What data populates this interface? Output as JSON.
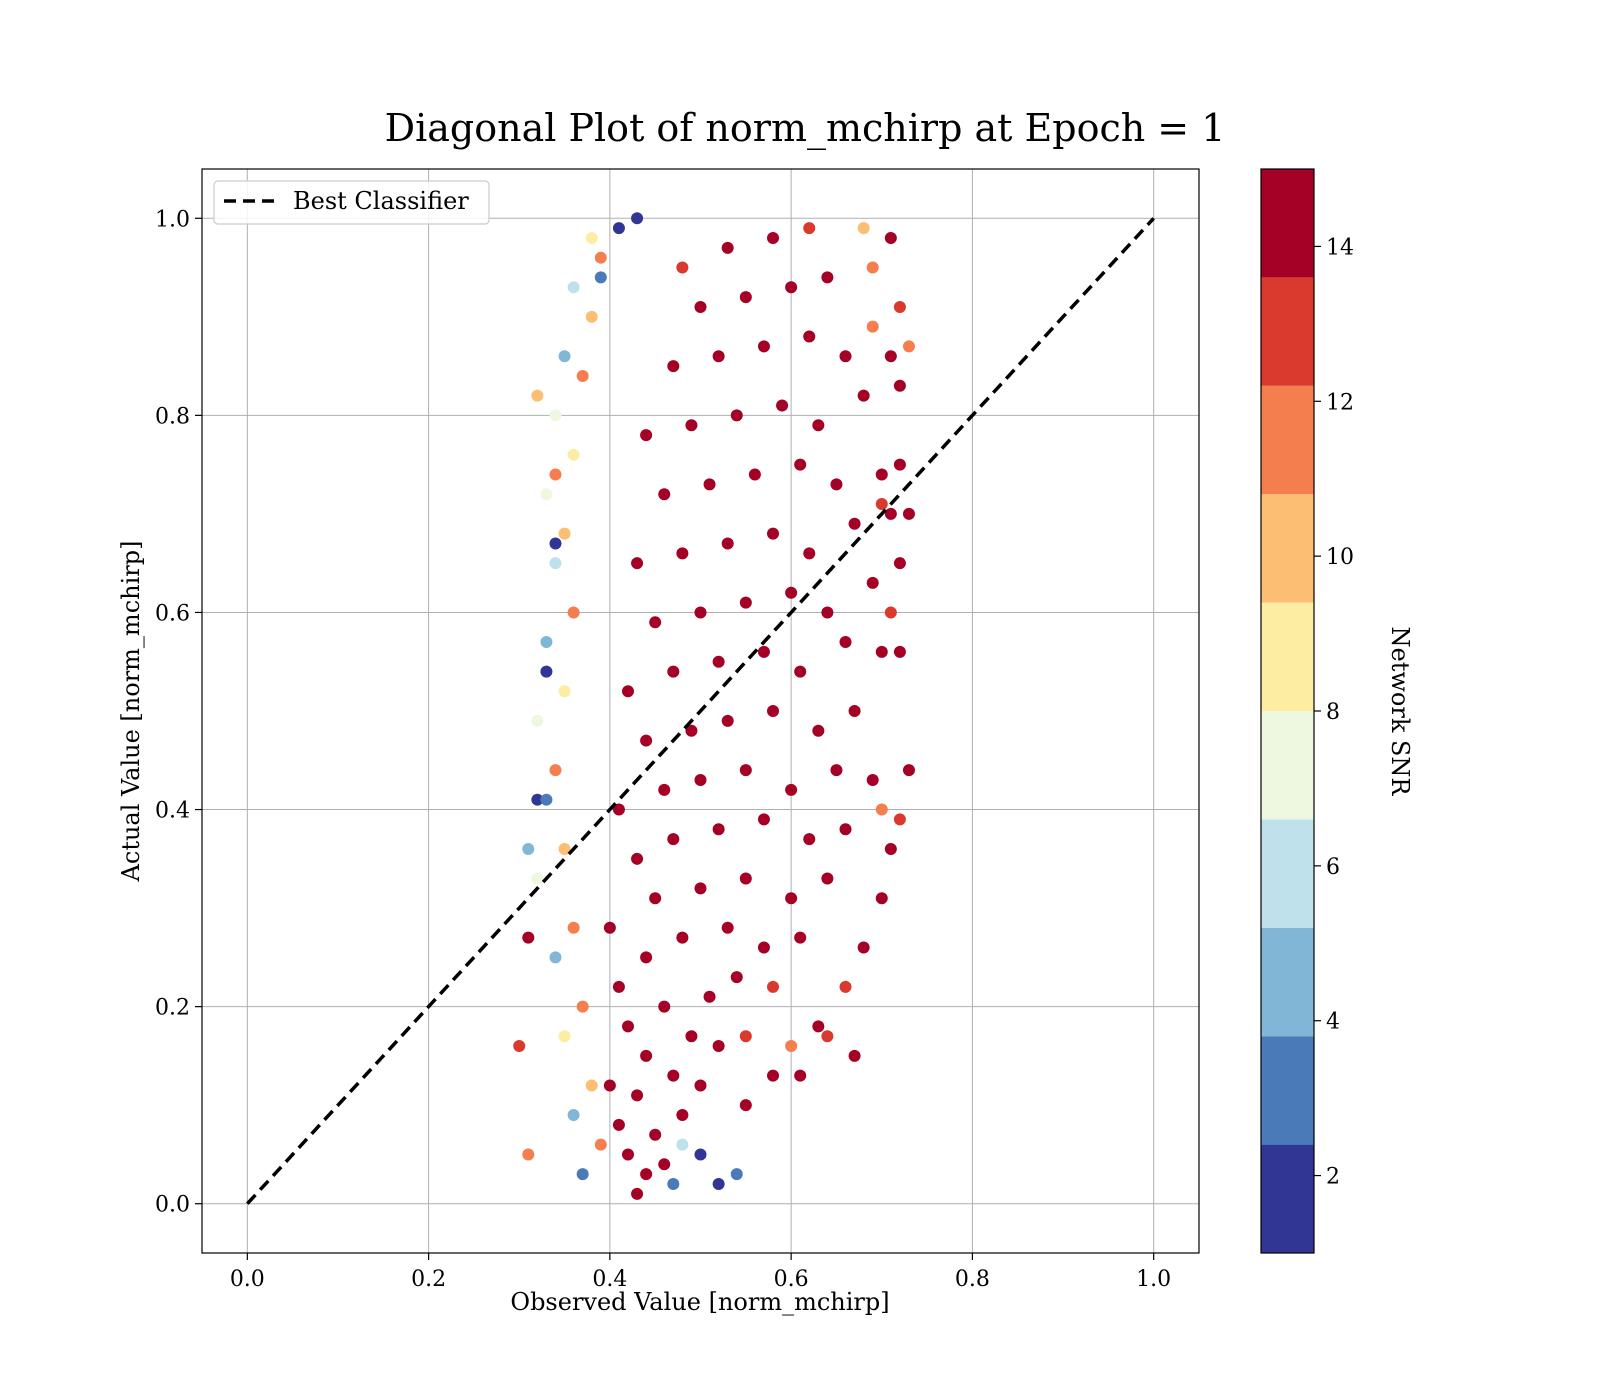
{
  "chart_data": {
    "type": "scatter",
    "title": "Diagonal Plot of norm_mchirp at Epoch = 1",
    "xlabel": "Observed Value [norm_mchirp]",
    "ylabel": "Actual Value [norm_mchirp]",
    "xlim": [
      -0.05,
      1.05
    ],
    "ylim": [
      -0.05,
      1.05
    ],
    "xticks": [
      "0.0",
      "0.2",
      "0.4",
      "0.6",
      "0.8",
      "1.0"
    ],
    "yticks": [
      "0.0",
      "0.2",
      "0.4",
      "0.6",
      "0.8",
      "1.0"
    ],
    "grid": true,
    "legend": {
      "placement": "top-left",
      "entries": [
        "Best Classifier"
      ]
    },
    "reference_line": {
      "name": "Best Classifier",
      "x": [
        0.0,
        1.0
      ],
      "y": [
        0.0,
        1.0
      ],
      "style": "dashed",
      "color": "#000000"
    },
    "colorbar": {
      "label": "Network SNR",
      "range": [
        1,
        15
      ],
      "ticks": [
        "2",
        "4",
        "6",
        "8",
        "10",
        "12",
        "14"
      ],
      "tick_values": [
        2,
        4,
        6,
        8,
        10,
        12,
        14
      ],
      "levels": [
        1,
        2.4,
        3.8,
        5.2,
        6.6,
        8.0,
        9.4,
        10.8,
        12.2,
        13.6,
        15
      ],
      "colors": [
        "#313695",
        "#4a7ab7",
        "#82b6d7",
        "#bfe1ec",
        "#eef7e0",
        "#fdeda2",
        "#fcbe72",
        "#f47e4e",
        "#d93a2d",
        "#a50026"
      ]
    },
    "series": [
      {
        "marker": "circle",
        "columns": [
          "x",
          "y",
          "snr"
        ],
        "points": [
          [
            0.43,
            0.01,
            15
          ],
          [
            0.44,
            0.03,
            15
          ],
          [
            0.42,
            0.05,
            15
          ],
          [
            0.46,
            0.04,
            14
          ],
          [
            0.41,
            0.08,
            15
          ],
          [
            0.45,
            0.07,
            15
          ],
          [
            0.48,
            0.09,
            14
          ],
          [
            0.43,
            0.11,
            15
          ],
          [
            0.4,
            0.12,
            14
          ],
          [
            0.47,
            0.13,
            15
          ],
          [
            0.5,
            0.12,
            14
          ],
          [
            0.44,
            0.15,
            15
          ],
          [
            0.42,
            0.18,
            15
          ],
          [
            0.49,
            0.17,
            15
          ],
          [
            0.52,
            0.16,
            14
          ],
          [
            0.55,
            0.17,
            13
          ],
          [
            0.46,
            0.2,
            15
          ],
          [
            0.41,
            0.22,
            15
          ],
          [
            0.51,
            0.21,
            15
          ],
          [
            0.54,
            0.23,
            14
          ],
          [
            0.58,
            0.22,
            13
          ],
          [
            0.44,
            0.25,
            15
          ],
          [
            0.48,
            0.27,
            15
          ],
          [
            0.53,
            0.28,
            15
          ],
          [
            0.57,
            0.26,
            14
          ],
          [
            0.61,
            0.27,
            14
          ],
          [
            0.4,
            0.28,
            14
          ],
          [
            0.45,
            0.31,
            15
          ],
          [
            0.5,
            0.32,
            15
          ],
          [
            0.55,
            0.33,
            15
          ],
          [
            0.6,
            0.31,
            15
          ],
          [
            0.64,
            0.33,
            14
          ],
          [
            0.43,
            0.35,
            15
          ],
          [
            0.47,
            0.37,
            15
          ],
          [
            0.52,
            0.38,
            15
          ],
          [
            0.57,
            0.39,
            15
          ],
          [
            0.62,
            0.37,
            15
          ],
          [
            0.66,
            0.38,
            14
          ],
          [
            0.41,
            0.4,
            15
          ],
          [
            0.46,
            0.42,
            15
          ],
          [
            0.5,
            0.43,
            15
          ],
          [
            0.55,
            0.44,
            15
          ],
          [
            0.6,
            0.42,
            15
          ],
          [
            0.65,
            0.44,
            14
          ],
          [
            0.69,
            0.43,
            14
          ],
          [
            0.44,
            0.47,
            15
          ],
          [
            0.49,
            0.48,
            15
          ],
          [
            0.53,
            0.49,
            15
          ],
          [
            0.58,
            0.5,
            15
          ],
          [
            0.63,
            0.48,
            15
          ],
          [
            0.67,
            0.5,
            14
          ],
          [
            0.42,
            0.52,
            14
          ],
          [
            0.47,
            0.54,
            15
          ],
          [
            0.52,
            0.55,
            15
          ],
          [
            0.57,
            0.56,
            15
          ],
          [
            0.61,
            0.54,
            15
          ],
          [
            0.66,
            0.57,
            14
          ],
          [
            0.7,
            0.56,
            14
          ],
          [
            0.45,
            0.59,
            15
          ],
          [
            0.5,
            0.6,
            15
          ],
          [
            0.55,
            0.61,
            15
          ],
          [
            0.6,
            0.62,
            15
          ],
          [
            0.64,
            0.6,
            15
          ],
          [
            0.69,
            0.63,
            14
          ],
          [
            0.43,
            0.65,
            14
          ],
          [
            0.48,
            0.66,
            15
          ],
          [
            0.53,
            0.67,
            15
          ],
          [
            0.58,
            0.68,
            15
          ],
          [
            0.62,
            0.66,
            15
          ],
          [
            0.67,
            0.69,
            14
          ],
          [
            0.71,
            0.7,
            14
          ],
          [
            0.46,
            0.72,
            15
          ],
          [
            0.51,
            0.73,
            15
          ],
          [
            0.56,
            0.74,
            15
          ],
          [
            0.61,
            0.75,
            15
          ],
          [
            0.65,
            0.73,
            15
          ],
          [
            0.7,
            0.74,
            14
          ],
          [
            0.44,
            0.78,
            14
          ],
          [
            0.49,
            0.79,
            15
          ],
          [
            0.54,
            0.8,
            15
          ],
          [
            0.59,
            0.81,
            15
          ],
          [
            0.63,
            0.79,
            15
          ],
          [
            0.68,
            0.82,
            14
          ],
          [
            0.47,
            0.85,
            15
          ],
          [
            0.52,
            0.86,
            15
          ],
          [
            0.57,
            0.87,
            15
          ],
          [
            0.62,
            0.88,
            15
          ],
          [
            0.66,
            0.86,
            14
          ],
          [
            0.5,
            0.91,
            15
          ],
          [
            0.55,
            0.92,
            15
          ],
          [
            0.6,
            0.93,
            15
          ],
          [
            0.64,
            0.94,
            14
          ],
          [
            0.53,
            0.97,
            14
          ],
          [
            0.58,
            0.98,
            14
          ],
          [
            0.62,
            0.99,
            13
          ],
          [
            0.48,
            0.95,
            13
          ],
          [
            0.39,
            0.96,
            11
          ],
          [
            0.38,
            0.9,
            10
          ],
          [
            0.37,
            0.84,
            12
          ],
          [
            0.36,
            0.76,
            9
          ],
          [
            0.35,
            0.68,
            10
          ],
          [
            0.36,
            0.6,
            11
          ],
          [
            0.35,
            0.52,
            9
          ],
          [
            0.34,
            0.44,
            12
          ],
          [
            0.35,
            0.36,
            10
          ],
          [
            0.36,
            0.28,
            11
          ],
          [
            0.37,
            0.2,
            12
          ],
          [
            0.38,
            0.12,
            10
          ],
          [
            0.39,
            0.06,
            11
          ],
          [
            0.38,
            0.98,
            9
          ],
          [
            0.36,
            0.93,
            6
          ],
          [
            0.35,
            0.86,
            5
          ],
          [
            0.34,
            0.8,
            8
          ],
          [
            0.33,
            0.72,
            7
          ],
          [
            0.34,
            0.65,
            6
          ],
          [
            0.33,
            0.57,
            4
          ],
          [
            0.32,
            0.49,
            7
          ],
          [
            0.33,
            0.41,
            3
          ],
          [
            0.32,
            0.33,
            8
          ],
          [
            0.34,
            0.25,
            5
          ],
          [
            0.35,
            0.17,
            9
          ],
          [
            0.36,
            0.09,
            4
          ],
          [
            0.37,
            0.03,
            3
          ],
          [
            0.41,
            0.99,
            2
          ],
          [
            0.43,
            1.0,
            2
          ],
          [
            0.39,
            0.94,
            3
          ],
          [
            0.33,
            0.54,
            1
          ],
          [
            0.34,
            0.67,
            1
          ],
          [
            0.32,
            0.41,
            2
          ],
          [
            0.31,
            0.36,
            4
          ],
          [
            0.3,
            0.16,
            13
          ],
          [
            0.31,
            0.27,
            14
          ],
          [
            0.31,
            0.05,
            12
          ],
          [
            0.34,
            0.74,
            11
          ],
          [
            0.32,
            0.82,
            10
          ],
          [
            0.47,
            0.02,
            3
          ],
          [
            0.5,
            0.05,
            2
          ],
          [
            0.48,
            0.06,
            6
          ],
          [
            0.54,
            0.03,
            3
          ],
          [
            0.52,
            0.02,
            2
          ],
          [
            0.7,
            0.71,
            13
          ],
          [
            0.72,
            0.75,
            14
          ],
          [
            0.73,
            0.7,
            14
          ],
          [
            0.72,
            0.65,
            14
          ],
          [
            0.71,
            0.6,
            13
          ],
          [
            0.72,
            0.56,
            14
          ],
          [
            0.73,
            0.44,
            14
          ],
          [
            0.72,
            0.39,
            13
          ],
          [
            0.71,
            0.36,
            14
          ],
          [
            0.7,
            0.31,
            14
          ],
          [
            0.68,
            0.26,
            14
          ],
          [
            0.66,
            0.22,
            13
          ],
          [
            0.63,
            0.18,
            14
          ],
          [
            0.6,
            0.16,
            12
          ],
          [
            0.58,
            0.13,
            14
          ],
          [
            0.55,
            0.1,
            14
          ],
          [
            0.67,
            0.15,
            14
          ],
          [
            0.64,
            0.17,
            13
          ],
          [
            0.61,
            0.13,
            15
          ],
          [
            0.71,
            0.86,
            14
          ],
          [
            0.72,
            0.91,
            13
          ],
          [
            0.71,
            0.98,
            14
          ],
          [
            0.69,
            0.95,
            12
          ],
          [
            0.68,
            0.99,
            10
          ],
          [
            0.7,
            0.4,
            12
          ],
          [
            0.72,
            0.83,
            14
          ],
          [
            0.69,
            0.89,
            11
          ],
          [
            0.73,
            0.87,
            11
          ]
        ]
      }
    ]
  }
}
